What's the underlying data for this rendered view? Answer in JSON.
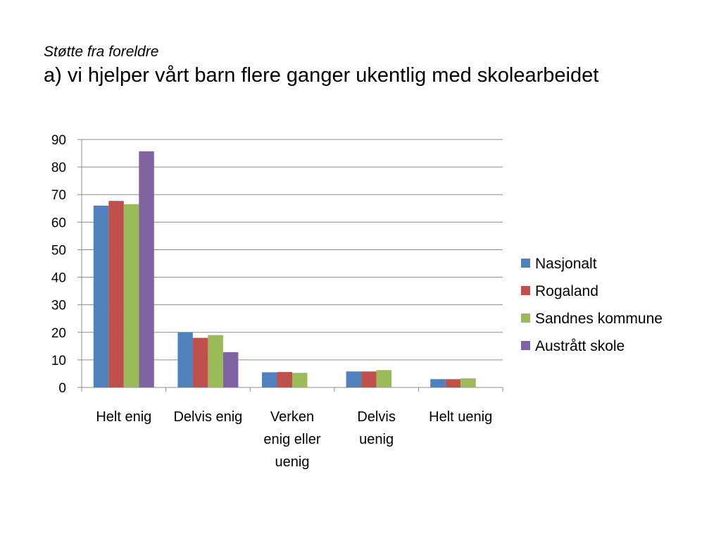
{
  "slide": {
    "subtitle": "Støtte fra foreldre",
    "title": "a) vi hjelper vårt barn flere ganger ukentlig med skolearbeidet"
  },
  "chart_data": {
    "type": "bar",
    "title": "",
    "xlabel": "",
    "ylabel": "",
    "ylim": [
      0,
      90
    ],
    "yticks": [
      0,
      10,
      20,
      30,
      40,
      50,
      60,
      70,
      80,
      90
    ],
    "grid": true,
    "legend_position": "right",
    "categories": [
      [
        "Helt enig"
      ],
      [
        "Delvis enig"
      ],
      [
        "Verken",
        "enig eller",
        "uenig"
      ],
      [
        "Delvis",
        "uenig"
      ],
      [
        "Helt uenig"
      ]
    ],
    "series": [
      {
        "name": "Nasjonalt",
        "color": "#4F81BD",
        "values": [
          66,
          20,
          5.5,
          5.8,
          3
        ]
      },
      {
        "name": "Rogaland",
        "color": "#C0504D",
        "values": [
          67.7,
          18,
          5.6,
          5.8,
          3
        ]
      },
      {
        "name": "Sandnes kommune",
        "color": "#9BBB59",
        "values": [
          66.5,
          19,
          5.3,
          6.3,
          3.3
        ]
      },
      {
        "name": "Austrått skole",
        "color": "#8064A2",
        "values": [
          85.7,
          12.8,
          null,
          null,
          null
        ]
      }
    ]
  }
}
